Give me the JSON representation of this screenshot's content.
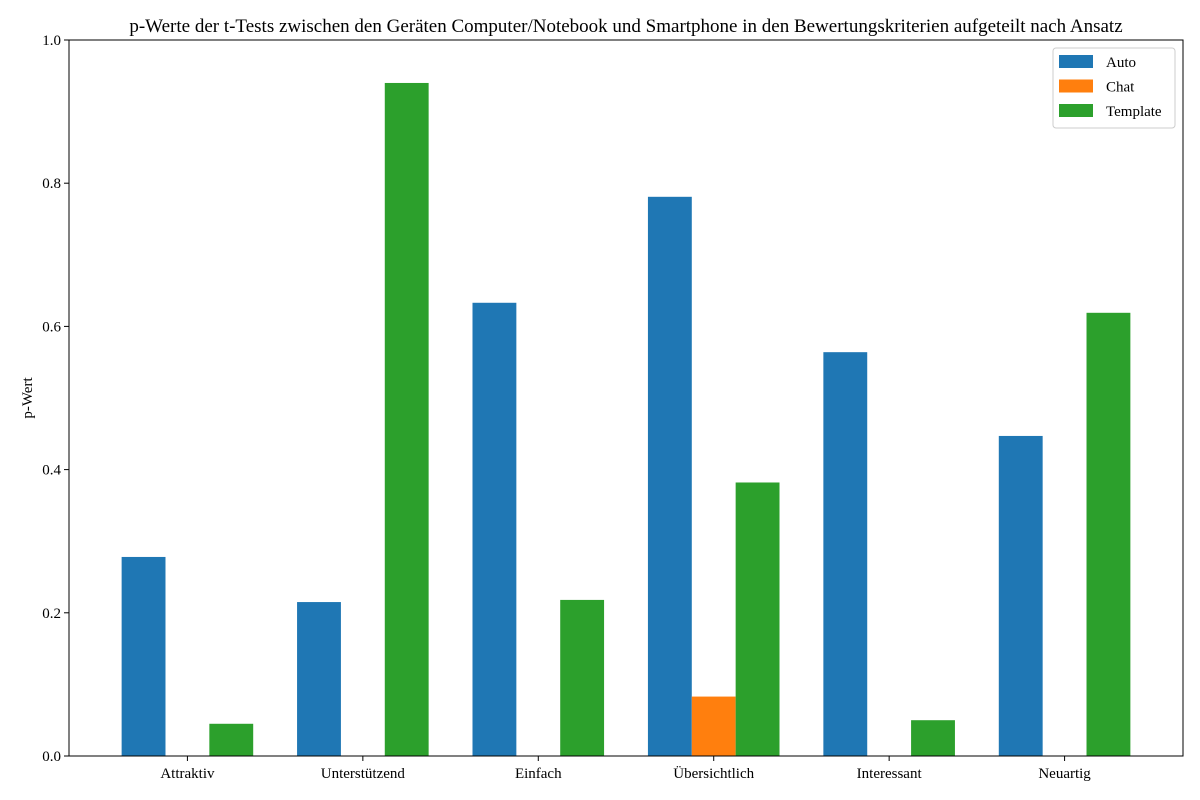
{
  "chart_data": {
    "type": "bar",
    "title": "p-Werte der t-Tests zwischen den Geräten Computer/Notebook und Smartphone in den Bewertungskriterien aufgeteilt nach Ansatz",
    "xlabel": "",
    "ylabel": "p-Wert",
    "ylim": [
      0,
      1.0
    ],
    "yticks": [
      "0.0",
      "0.2",
      "0.4",
      "0.6",
      "0.8",
      "1.0"
    ],
    "grid": false,
    "legend_position": "top-right",
    "categories": [
      "Attraktiv",
      "Unterstützend",
      "Einfach",
      "Übersichtlich",
      "Interessant",
      "Neuartig"
    ],
    "series": [
      {
        "name": "Auto",
        "color": "#1f77b4",
        "values": [
          0.278,
          0.215,
          0.633,
          0.781,
          0.564,
          0.447
        ]
      },
      {
        "name": "Chat",
        "color": "#ff7f0e",
        "values": [
          0,
          0,
          0,
          0.083,
          0,
          0
        ]
      },
      {
        "name": "Template",
        "color": "#2ca02c",
        "values": [
          0.045,
          0.94,
          0.218,
          0.382,
          0.05,
          0.619
        ]
      }
    ]
  }
}
